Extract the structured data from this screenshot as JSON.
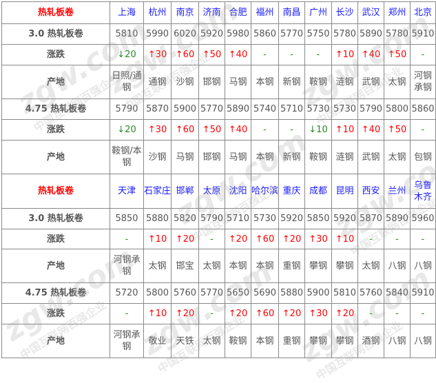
{
  "sections": [
    {
      "title": "热轧板卷",
      "cities": [
        "上海",
        "杭州",
        "南京",
        "济南",
        "合肥",
        "福州",
        "南昌",
        "广州",
        "长沙",
        "武汉",
        "郑州",
        "北京"
      ],
      "rows": [
        {
          "label": "3.0 热轧板卷",
          "type": "price",
          "values": [
            "5810",
            "5990",
            "6020",
            "5920",
            "5980",
            "5860",
            "5770",
            "5750",
            "5780",
            "5890",
            "5780",
            "5910"
          ]
        },
        {
          "label": "涨跌",
          "type": "change",
          "values": [
            "↓20",
            "↑30",
            "↑60",
            "↑50",
            "↑40",
            "-",
            "-",
            "-",
            "↑10",
            "↑40",
            "↑50",
            "-"
          ]
        },
        {
          "label": "产地",
          "type": "origin",
          "values": [
            "日照/通钢",
            "通钢",
            "沙钢",
            "邯钢",
            "马钢",
            "本钢",
            "新钢",
            "鞍钢",
            "涟钢",
            "武钢",
            "太钢",
            "河钢承钢"
          ]
        },
        {
          "label": "4.75 热轧板卷",
          "type": "price",
          "values": [
            "5790",
            "5870",
            "5900",
            "5770",
            "5890",
            "5740",
            "5710",
            "5730",
            "5730",
            "5790",
            "5800",
            "5860"
          ]
        },
        {
          "label": "涨跌",
          "type": "change",
          "values": [
            "↓20",
            "↑30",
            "↑60",
            "↑50",
            "↑40",
            "-",
            "-",
            "↓10",
            "↑10",
            "↑40",
            "↑50",
            "-"
          ]
        },
        {
          "label": "产地",
          "type": "origin",
          "values": [
            "鞍钢/本钢",
            "沙钢",
            "马钢",
            "邯钢",
            "马钢",
            "本钢",
            "新钢",
            "鞍钢",
            "涟钢",
            "武钢",
            "太钢",
            "包钢"
          ]
        }
      ]
    },
    {
      "title": "热轧板卷",
      "cities": [
        "天津",
        "石家庄",
        "邯郸",
        "太原",
        "沈阳",
        "哈尔滨",
        "重庆",
        "成都",
        "昆明",
        "西安",
        "兰州",
        "乌鲁木齐"
      ],
      "rows": [
        {
          "label": "3.0 热轧板卷",
          "type": "price",
          "values": [
            "5850",
            "5880",
            "5820",
            "5790",
            "5710",
            "5730",
            "5920",
            "5850",
            "5920",
            "5870",
            "5890",
            "5960"
          ]
        },
        {
          "label": "涨跌",
          "type": "change",
          "values": [
            "-",
            "↑10",
            "↑20",
            "-",
            "↑20",
            "↑60",
            "↑20",
            "↑30",
            "↑10",
            "-",
            "-",
            "-"
          ]
        },
        {
          "label": "产地",
          "type": "origin",
          "values": [
            "河钢承钢",
            "太钢",
            "邯宝",
            "太钢",
            "本钢",
            "本钢",
            "重钢",
            "攀钢",
            "攀钢",
            "太钢",
            "八钢",
            "八钢"
          ]
        },
        {
          "label": "4.75 热轧板卷",
          "type": "price",
          "values": [
            "5720",
            "5800",
            "5760",
            "5770",
            "5650",
            "5690",
            "5880",
            "5900",
            "5810",
            "5760",
            "5840",
            "5910"
          ]
        },
        {
          "label": "涨跌",
          "type": "change",
          "values": [
            "-",
            "↑10",
            "↑20",
            "-",
            "↑20",
            "↑60",
            "↑20",
            "↑30",
            "↑20",
            "-",
            "-",
            "-"
          ]
        },
        {
          "label": "产地",
          "type": "origin",
          "values": [
            "河钢承钢",
            "敬业",
            "天铁",
            "太钢",
            "鞍钢",
            "本钢",
            "重钢",
            "攀钢",
            "攀钢",
            "酒钢",
            "八钢",
            "八钢"
          ]
        }
      ]
    }
  ],
  "watermark": {
    "logo": "zgw.com",
    "text": "中国互联网百强企业"
  },
  "colors": {
    "title": "#ff0000",
    "city": "#1a1aff",
    "up": "#ff0000",
    "down": "#228b22"
  }
}
